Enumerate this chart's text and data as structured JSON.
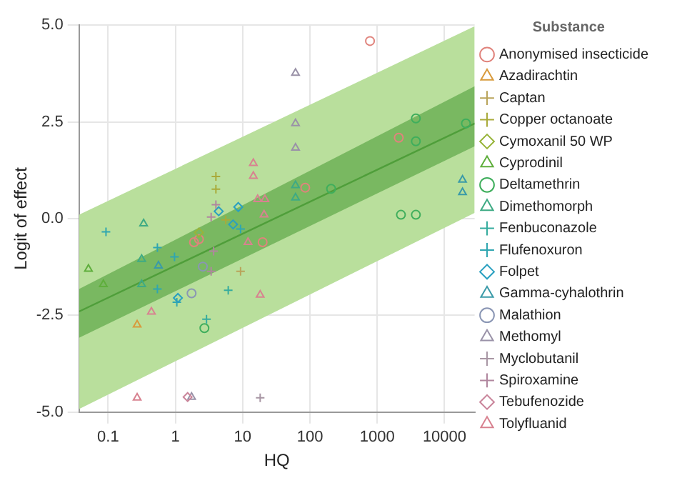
{
  "chart_data": {
    "type": "scatter",
    "xlabel": "HQ",
    "ylabel": "Logit of effect",
    "legend_title": "Substance",
    "log": "x",
    "grid": true,
    "legend": "right",
    "xlim": [
      0.037,
      28000
    ],
    "xticks": [
      0.1,
      1,
      10,
      100,
      1000,
      10000
    ],
    "ylim": [
      -5,
      5
    ],
    "yticks": [
      {
        "value": -5,
        "label": "-5.0"
      },
      {
        "value": -2.5,
        "label": "-2.5"
      },
      {
        "value": 0,
        "label": "0.0"
      },
      {
        "value": 2.5,
        "label": "2.5"
      },
      {
        "value": 5,
        "label": "5.0"
      }
    ],
    "series": [
      {
        "type": "line",
        "color": "#b9df9c",
        "marker": "none",
        "x": [
          0.037,
          28000
        ],
        "values": [
          null,
          null
        ],
        "lower": [
          -4.92,
          0.15
        ],
        "upper": [
          0.1,
          4.97
        ]
      },
      {
        "type": "line",
        "color": "#4f9e3a",
        "marker": "none",
        "x": [
          0.037,
          28000
        ],
        "values": [
          -2.4,
          2.46
        ],
        "lower": [
          -3.08,
          1.87
        ],
        "upper": [
          -1.82,
          3.42
        ]
      },
      {
        "name": "Anonymised insecticide",
        "color": "#e0837c",
        "marker": "circle",
        "x": [
          780,
          1.89,
          2.24,
          19.8,
          85,
          2090
        ],
        "values": [
          4.59,
          -0.61,
          -0.53,
          -0.61,
          0.8,
          2.09
        ]
      },
      {
        "name": "Azadirachtin",
        "color": "#d89a3c",
        "marker": "triangle",
        "x": [
          0.27
        ],
        "values": [
          -2.74
        ]
      },
      {
        "name": "Captan",
        "color": "#b9a45a",
        "marker": "cross",
        "x": [
          9.3
        ],
        "values": [
          -1.36
        ]
      },
      {
        "name": "Copper octanoate",
        "color": "#a9aa3a",
        "marker": "cross",
        "x": [
          4,
          4,
          5.6
        ],
        "values": [
          1.09,
          0.76,
          -0.03
        ]
      },
      {
        "name": "Cymoxanil 50 WP",
        "color": "#98b43a",
        "marker": "diamond",
        "x": [
          2.24
        ],
        "values": [
          -0.36
        ]
      },
      {
        "name": "Cyprodinil",
        "color": "#5fae3c",
        "marker": "triangle",
        "x": [
          0.051,
          0.085
        ],
        "values": [
          -1.3,
          -1.7
        ]
      },
      {
        "name": "Deltamethrin",
        "color": "#3fae5c",
        "marker": "circle",
        "x": [
          2.7,
          3750,
          3750,
          20800,
          2250,
          3750,
          206
        ],
        "values": [
          -2.83,
          2.59,
          2.0,
          2.46,
          0.1,
          0.1,
          0.77
        ]
      },
      {
        "name": "Dimethomorph",
        "color": "#3eaa84",
        "marker": "triangle",
        "x": [
          0.337,
          0.315,
          0.315,
          61,
          61
        ],
        "values": [
          -0.13,
          -1.05,
          -1.7,
          0.86,
          0.54
        ]
      },
      {
        "name": "Fenbuconazole",
        "color": "#35ac9e",
        "marker": "cross",
        "x": [
          2.9,
          6.1
        ],
        "values": [
          -2.6,
          -1.85
        ]
      },
      {
        "name": "Flufenoxuron",
        "color": "#2fa6b0",
        "marker": "cross",
        "x": [
          0.093,
          0.54,
          0.54,
          0.97,
          1.05,
          9.3
        ],
        "values": [
          -0.34,
          -0.75,
          -1.82,
          -0.99,
          -2.16,
          -0.27
        ]
      },
      {
        "name": "Folpet",
        "color": "#2aa0c0",
        "marker": "diamond",
        "x": [
          8.6,
          4.4,
          1.09,
          7.2
        ],
        "values": [
          0.3,
          0.19,
          -2.05,
          -0.15
        ]
      },
      {
        "name": "Gamma-cyhalothrin",
        "color": "#3a9aa8",
        "marker": "triangle",
        "x": [
          0.56,
          18500,
          18500
        ],
        "values": [
          -1.22,
          1.0,
          0.68
        ]
      },
      {
        "name": "Malathion",
        "color": "#8a96b4",
        "marker": "circle",
        "x": [
          1.74,
          2.56
        ],
        "values": [
          -1.93,
          -1.24
        ]
      },
      {
        "name": "Methomyl",
        "color": "#9a92a8",
        "marker": "triangle",
        "x": [
          61,
          61,
          61,
          1.74
        ],
        "values": [
          3.76,
          2.46,
          1.83,
          -4.61
        ]
      },
      {
        "name": "Myclobutanil",
        "color": "#a896a4",
        "marker": "cross",
        "x": [
          18.2
        ],
        "values": [
          -4.63
        ]
      },
      {
        "name": "Spiroxamine",
        "color": "#b0869e",
        "marker": "cross",
        "x": [
          3.4,
          3.7,
          3.4,
          4
        ],
        "values": [
          -1.36,
          -0.84,
          0.04,
          0.36
        ]
      },
      {
        "name": "Tebufenozide",
        "color": "#c9849a",
        "marker": "diamond",
        "x": [
          1.52
        ],
        "values": [
          -4.61
        ]
      },
      {
        "name": "Tolyfluanid",
        "color": "#d88290",
        "marker": "triangle",
        "x": [
          14.4,
          14.4,
          16.7,
          21.4,
          20.8,
          0.44,
          18.2,
          12,
          0.27
        ],
        "values": [
          1.43,
          1.1,
          0.5,
          0.5,
          0.1,
          -2.41,
          -1.97,
          -0.61,
          -4.63
        ]
      }
    ]
  }
}
